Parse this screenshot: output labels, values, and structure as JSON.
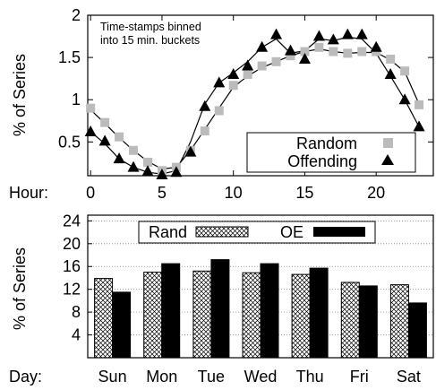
{
  "chart_data": [
    {
      "type": "line",
      "ylabel": "% of Series",
      "xlabel": "Hour:",
      "xlim": [
        -0.2,
        24
      ],
      "ylim": [
        0.1,
        2.0
      ],
      "xticks": [
        "0",
        "5",
        "10",
        "15",
        "20"
      ],
      "xtick_values": [
        0,
        5,
        10,
        15,
        20
      ],
      "yticks": [
        "0.5",
        "1",
        "1.5",
        "2"
      ],
      "ytick_values": [
        0.5,
        1,
        1.5,
        2
      ],
      "annotation": [
        "Time-stamps binned",
        "into 15 min. buckets"
      ],
      "legend_placement": "bottom-right",
      "series": [
        {
          "name": "Random",
          "marker": "square",
          "color": "#bbbbbb",
          "x": [
            0,
            1,
            2,
            3,
            4,
            5,
            6,
            7,
            8,
            9,
            10,
            11,
            12,
            13,
            14,
            15,
            16,
            17,
            18,
            19,
            20,
            21,
            22,
            23
          ],
          "values": [
            0.9,
            0.73,
            0.56,
            0.4,
            0.26,
            0.16,
            0.2,
            0.4,
            0.63,
            0.87,
            1.17,
            1.3,
            1.4,
            1.45,
            1.52,
            1.57,
            1.62,
            1.57,
            1.55,
            1.57,
            1.57,
            1.48,
            1.34,
            0.94
          ],
          "line_values": [
            0.88,
            0.72,
            0.55,
            0.4,
            0.27,
            0.18,
            0.2,
            0.4,
            0.65,
            0.9,
            1.15,
            1.28,
            1.38,
            1.45,
            1.52,
            1.57,
            1.6,
            1.57,
            1.55,
            1.56,
            1.56,
            1.47,
            1.33,
            0.95
          ]
        },
        {
          "name": "Offending",
          "marker": "triangle",
          "color": "#000000",
          "x": [
            0,
            1,
            2,
            3,
            4,
            5,
            6,
            7,
            8,
            9,
            10,
            11,
            12,
            13,
            14,
            15,
            16,
            17,
            18,
            19,
            20,
            21,
            22,
            23
          ],
          "values": [
            0.62,
            0.51,
            0.3,
            0.2,
            0.15,
            0.11,
            0.14,
            0.38,
            0.92,
            1.2,
            1.3,
            1.4,
            1.62,
            1.77,
            1.58,
            1.48,
            1.75,
            1.71,
            1.77,
            1.77,
            1.62,
            1.3,
            1.0,
            0.68
          ],
          "line_values": [
            0.62,
            0.48,
            0.3,
            0.2,
            0.14,
            0.12,
            0.16,
            0.5,
            0.95,
            1.2,
            1.32,
            1.45,
            1.62,
            1.72,
            1.55,
            1.58,
            1.72,
            1.7,
            1.74,
            1.72,
            1.55,
            1.28,
            1.0,
            0.68
          ]
        }
      ]
    },
    {
      "type": "bar",
      "ylabel": "% of Series",
      "xlabel": "Day:",
      "categories": [
        "Sun",
        "Mon",
        "Tue",
        "Wed",
        "Thu",
        "Fri",
        "Sat"
      ],
      "ylim": [
        0,
        25
      ],
      "yticks": [
        "4",
        "8",
        "12",
        "16",
        "20",
        "24"
      ],
      "ytick_values": [
        4,
        8,
        12,
        16,
        20,
        24
      ],
      "grid": true,
      "legend_placement": "top",
      "series": [
        {
          "name": "Rand",
          "pattern": "crosshatch",
          "values": [
            13.9,
            15.0,
            15.2,
            14.9,
            14.6,
            13.2,
            12.8
          ]
        },
        {
          "name": "OE",
          "pattern": "solid",
          "color": "#000000",
          "values": [
            11.5,
            16.5,
            17.2,
            16.5,
            15.7,
            12.6,
            9.6
          ]
        }
      ]
    }
  ]
}
